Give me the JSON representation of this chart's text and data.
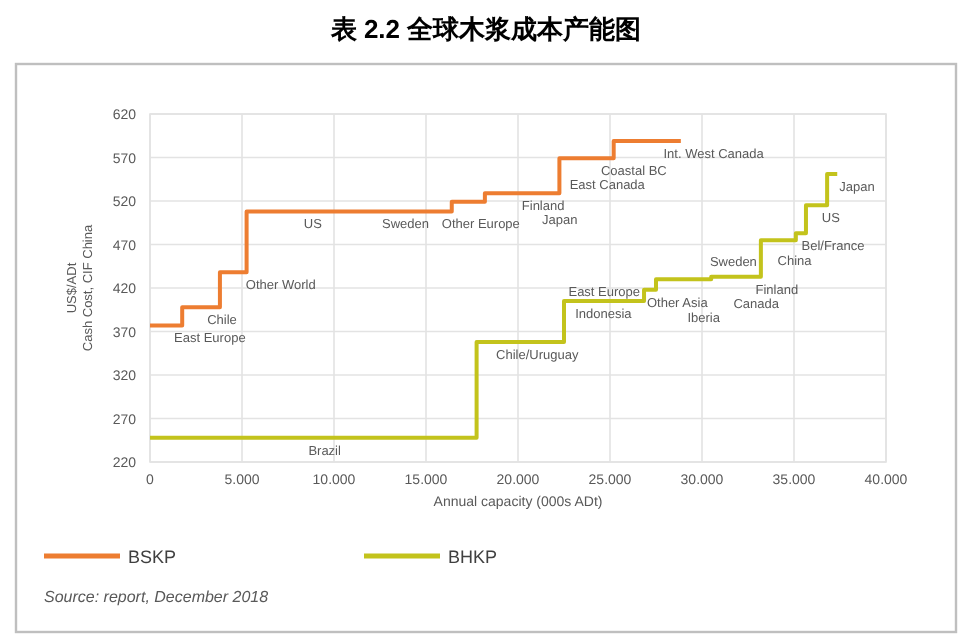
{
  "chart_data": {
    "type": "step",
    "title": "表 2.2  全球木浆成本产能图",
    "xlabel": "Annual capacity (000s ADt)",
    "ylabel": "US$/ADt\nCash Cost, CIF China",
    "xlim": [
      0,
      40
    ],
    "ylim": [
      220,
      620
    ],
    "xticks": [
      0,
      {
        "value": 5,
        "label": "5.000"
      },
      {
        "value": 10,
        "label": "10.000"
      },
      {
        "value": 15,
        "label": "15.000"
      },
      {
        "value": 20,
        "label": "20.000"
      },
      {
        "value": 25,
        "label": "25.000"
      },
      {
        "value": 30,
        "label": "30.000"
      },
      {
        "value": 35,
        "label": "35.000"
      },
      {
        "value": 40,
        "label": "40.000"
      }
    ],
    "yticks": [
      220,
      270,
      320,
      370,
      420,
      470,
      520,
      570,
      620
    ],
    "grid": true,
    "legend": "bottom",
    "series": [
      {
        "name": "BSKP",
        "color": "#ed7d31",
        "x": [
          0,
          1.75,
          3.8,
          5.25,
          16.4,
          18.2,
          22.25,
          25.2,
          28.85
        ],
        "values": [
          377,
          398,
          438,
          508,
          519,
          529,
          569,
          589,
          589
        ]
      },
      {
        "name": "BHKP",
        "color": "#c3c31c",
        "x": [
          0,
          17.75,
          22.5,
          26.85,
          27.5,
          30.5,
          33.2,
          35.1,
          35.65,
          36.8,
          37.35
        ],
        "values": [
          248,
          358,
          405,
          418,
          430,
          433,
          475,
          483,
          515,
          551,
          551
        ]
      }
    ],
    "annotations": [
      {
        "text": "Chile",
        "x": 3.0,
        "y": 398
      },
      {
        "text": "East Europe",
        "x": 1.2,
        "y": 377
      },
      {
        "text": "Other World",
        "x": 5.1,
        "y": 438
      },
      {
        "text": "US",
        "x": 8.25,
        "y": 508
      },
      {
        "text": "Sweden",
        "x": 12.5,
        "y": 508
      },
      {
        "text": "Other Europe",
        "x": 15.75,
        "y": 508
      },
      {
        "text": "Finland",
        "x": 20.1,
        "y": 529
      },
      {
        "text": "Japan",
        "x": 21.2,
        "y": 529
      },
      {
        "text": "Coastal BC",
        "x": 24.4,
        "y": 569
      },
      {
        "text": "East Canada",
        "x": 22.7,
        "y": 569
      },
      {
        "text": "Int. West Canada",
        "x": 27.8,
        "y": 589
      },
      {
        "text": "Brazil",
        "x": 8.5,
        "y": 248
      },
      {
        "text": "Chile/Uruguay",
        "x": 18.7,
        "y": 358
      },
      {
        "text": "Indonesia",
        "x": 23.0,
        "y": 405
      },
      {
        "text": "East Europe",
        "x": 26.85,
        "y": 416
      },
      {
        "text": "Other Asia",
        "x": 26.9,
        "y": 418
      },
      {
        "text": "Iberia",
        "x": 29.1,
        "y": 430
      },
      {
        "text": "Finland",
        "x": 32.8,
        "y": 433
      },
      {
        "text": "Canada",
        "x": 31.6,
        "y": 433
      },
      {
        "text": "Sweden",
        "x": 33.2,
        "y": 451
      },
      {
        "text": "Bel/France",
        "x": 35.3,
        "y": 483
      },
      {
        "text": "China",
        "x": 34.0,
        "y": 475
      },
      {
        "text": "US",
        "x": 36.4,
        "y": 515
      },
      {
        "text": "Japan",
        "x": 37.35,
        "y": 551
      },
      "Source: report, December 2018"
    ]
  }
}
